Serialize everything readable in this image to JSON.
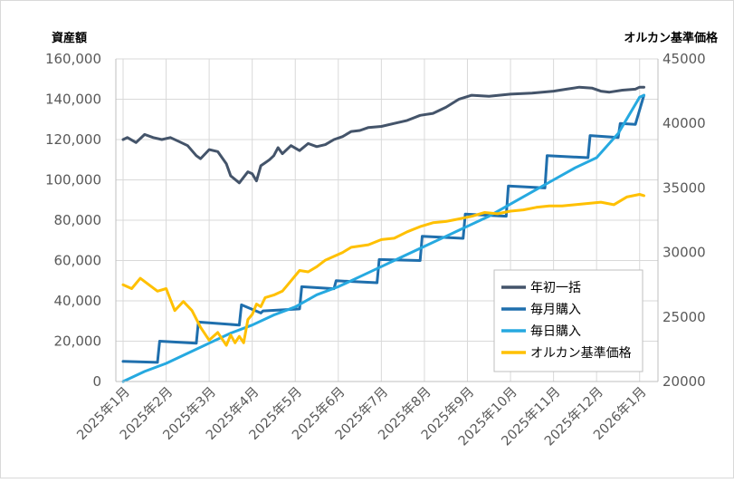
{
  "chart_data": {
    "type": "line",
    "left_axis_title": "資産額",
    "right_axis_title": "オルカン基準価格",
    "y_left": {
      "min": 0,
      "max": 160000,
      "ticks": [
        0,
        20000,
        40000,
        60000,
        80000,
        100000,
        120000,
        140000,
        160000
      ],
      "tick_labels": [
        "0",
        "20,000",
        "40,000",
        "60,000",
        "80,000",
        "100,000",
        "120,000",
        "140,000",
        "160,000"
      ]
    },
    "y_right": {
      "min": 20000,
      "max": 45000,
      "ticks": [
        20000,
        25000,
        30000,
        35000,
        40000,
        45000
      ],
      "tick_labels": [
        "20000",
        "25000",
        "30000",
        "35000",
        "40000",
        "45000"
      ]
    },
    "x_tick_labels": [
      "2025年1月",
      "2025年2月",
      "2025年3月",
      "2025年4月",
      "2025年5月",
      "2025年6月",
      "2025年7月",
      "2025年8月",
      "2025年9月",
      "2025年10月",
      "2025年11月",
      "2025年12月",
      "2026年1月"
    ],
    "grid": true,
    "legend_position": "bottom-right",
    "series": [
      {
        "name": "年初一括",
        "axis": "left",
        "color": "#44546a",
        "x": [
          0,
          0.1,
          0.3,
          0.5,
          0.7,
          0.9,
          1.1,
          1.3,
          1.5,
          1.7,
          1.8,
          2.0,
          2.2,
          2.4,
          2.5,
          2.7,
          2.9,
          3.0,
          3.1,
          3.2,
          3.3,
          3.4,
          3.5,
          3.6,
          3.7,
          3.9,
          4.1,
          4.3,
          4.5,
          4.7,
          4.9,
          5.1,
          5.3,
          5.5,
          5.7,
          6.0,
          6.3,
          6.6,
          6.9,
          7.2,
          7.5,
          7.8,
          8.1,
          8.5,
          9.0,
          9.5,
          10.0,
          10.3,
          10.6,
          10.9,
          11.1,
          11.3,
          11.6,
          11.9,
          12.0,
          12.1
        ],
        "values": [
          120000,
          121000,
          118500,
          122500,
          121000,
          120000,
          121000,
          119000,
          117000,
          112000,
          110500,
          115000,
          114000,
          108000,
          102000,
          98500,
          104000,
          103000,
          99500,
          107000,
          108500,
          110000,
          112000,
          116000,
          113000,
          117000,
          114500,
          118000,
          116500,
          117500,
          120000,
          121500,
          124000,
          124500,
          126000,
          126500,
          128000,
          129500,
          132000,
          133000,
          136000,
          140000,
          142000,
          141500,
          142500,
          143000,
          144000,
          145000,
          146000,
          145500,
          144000,
          143500,
          144500,
          145000,
          146000,
          146000
        ]
      },
      {
        "name": "毎月購入",
        "axis": "left",
        "color": "#1f6fad",
        "x": [
          0,
          0.8,
          0.85,
          1.7,
          1.75,
          2.7,
          2.75,
          3.2,
          3.25,
          4.1,
          4.15,
          4.9,
          4.95,
          5.9,
          5.95,
          6.9,
          6.95,
          7.9,
          7.95,
          8.9,
          8.95,
          9.8,
          9.85,
          10.8,
          10.85,
          11.5,
          11.55,
          11.9,
          12.1
        ],
        "values": [
          10000,
          9500,
          20000,
          19000,
          29500,
          28000,
          38000,
          34000,
          35000,
          36000,
          47000,
          46000,
          50000,
          49000,
          60500,
          60000,
          72000,
          71000,
          83000,
          82000,
          97000,
          96000,
          112000,
          111000,
          122000,
          121000,
          128000,
          127500,
          142000
        ]
      },
      {
        "name": "毎日購入",
        "axis": "left",
        "color": "#26a9e0",
        "x": [
          0,
          0.5,
          1.0,
          1.5,
          2.0,
          2.5,
          3.0,
          3.5,
          4.0,
          4.5,
          5.0,
          5.5,
          6.0,
          6.5,
          7.0,
          7.5,
          8.0,
          8.5,
          9.0,
          9.5,
          10.0,
          10.5,
          11.0,
          11.5,
          12.0,
          12.1
        ],
        "values": [
          0,
          5000,
          9000,
          14000,
          19000,
          24000,
          28000,
          33000,
          37000,
          43000,
          47000,
          52000,
          57000,
          62000,
          67000,
          72000,
          77000,
          82000,
          88000,
          94000,
          100000,
          106000,
          111000,
          123000,
          141000,
          142000
        ]
      },
      {
        "name": "オルカン基準価格",
        "axis": "right",
        "color": "#ffc000",
        "x": [
          0,
          0.2,
          0.4,
          0.6,
          0.8,
          1.0,
          1.2,
          1.4,
          1.6,
          1.8,
          2.0,
          2.2,
          2.4,
          2.5,
          2.6,
          2.7,
          2.8,
          2.9,
          3.0,
          3.1,
          3.2,
          3.3,
          3.5,
          3.7,
          3.9,
          4.1,
          4.3,
          4.5,
          4.7,
          4.9,
          5.1,
          5.3,
          5.5,
          5.7,
          6.0,
          6.3,
          6.6,
          6.9,
          7.2,
          7.5,
          7.8,
          8.1,
          8.4,
          8.7,
          9.0,
          9.3,
          9.6,
          9.9,
          10.2,
          10.5,
          10.8,
          11.1,
          11.4,
          11.7,
          12.0,
          12.1
        ],
        "values": [
          27500,
          27200,
          28000,
          27500,
          27000,
          27200,
          25500,
          26200,
          25500,
          24200,
          23200,
          23800,
          22800,
          23600,
          23000,
          23500,
          23000,
          24800,
          25200,
          26000,
          25800,
          26500,
          26700,
          27000,
          27800,
          28600,
          28500,
          28900,
          29400,
          29700,
          30000,
          30400,
          30500,
          30600,
          31000,
          31100,
          31600,
          32000,
          32300,
          32400,
          32600,
          32800,
          33100,
          33000,
          33200,
          33300,
          33500,
          33600,
          33600,
          33700,
          33800,
          33900,
          33700,
          34300,
          34500,
          34400
        ]
      }
    ]
  }
}
